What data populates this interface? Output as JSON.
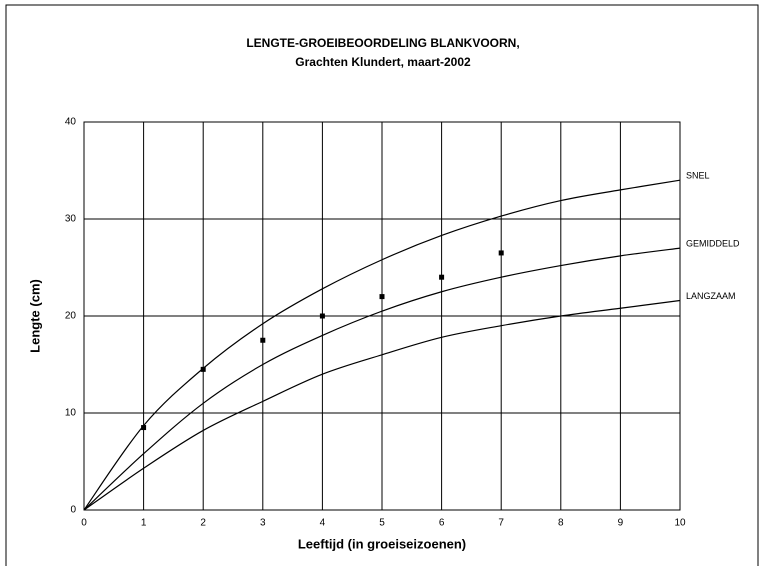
{
  "chart_data": {
    "type": "line",
    "title": "LENGTE-GROEIBEOORDELING BLANKVOORN,",
    "subtitle": "Grachten Klundert, maart-2002",
    "x_label": "Leeftijd (in groeiseizoenen)",
    "y_label": "Lengte (cm)",
    "x": [
      0,
      1,
      2,
      3,
      4,
      5,
      6,
      7,
      8,
      9,
      10
    ],
    "series": [
      {
        "name": "SNEL",
        "color": "#000000",
        "values": [
          0,
          8.7,
          14.6,
          19.2,
          22.8,
          25.8,
          28.3,
          30.3,
          31.9,
          33.0,
          34.0
        ]
      },
      {
        "name": "GEMIDDELD",
        "color": "#000000",
        "values": [
          0,
          5.8,
          11.0,
          15.0,
          18.0,
          20.5,
          22.5,
          24.0,
          25.2,
          26.2,
          27.0
        ]
      },
      {
        "name": "LANGZAAM",
        "color": "#000000",
        "values": [
          0,
          4.3,
          8.2,
          11.2,
          14.0,
          16.0,
          17.8,
          19.0,
          20.0,
          20.8,
          21.6
        ]
      }
    ],
    "points": {
      "color": "#000000",
      "x": [
        1,
        2,
        3,
        4,
        5,
        6,
        7
      ],
      "values": [
        8.5,
        14.5,
        17.5,
        20,
        22,
        24,
        26.5
      ]
    },
    "xlim": [
      0,
      10
    ],
    "xticks": [
      0,
      1,
      2,
      3,
      4,
      5,
      6,
      7,
      8,
      9,
      10
    ],
    "ylim": [
      0,
      40
    ],
    "yticks": [
      0,
      10,
      20,
      30,
      40
    ],
    "grid": true
  }
}
